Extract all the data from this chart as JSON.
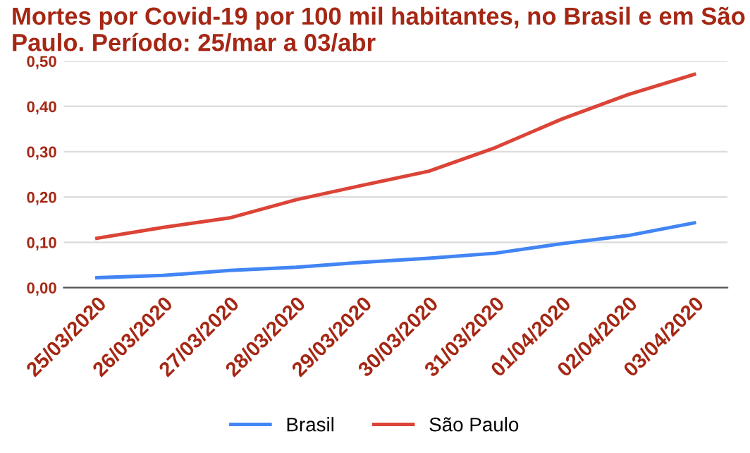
{
  "chart_data": {
    "type": "line",
    "title": "Mortes por Covid-19 por 100 mil habitantes, no Brasil e em São Paulo. Período: 25/mar a 03/abr",
    "categories": [
      "25/03/2020",
      "26/03/2020",
      "27/03/2020",
      "28/03/2020",
      "29/03/2020",
      "30/03/2020",
      "31/03/2020",
      "01/04/2020",
      "02/04/2020",
      "03/04/2020"
    ],
    "series": [
      {
        "name": "Brasil",
        "color": "#4285f4",
        "values": [
          0.022,
          0.027,
          0.038,
          0.045,
          0.056,
          0.065,
          0.076,
          0.097,
          0.115,
          0.143
        ]
      },
      {
        "name": "São Paulo",
        "color": "#db4437",
        "values": [
          0.109,
          0.133,
          0.154,
          0.194,
          0.226,
          0.257,
          0.309,
          0.372,
          0.426,
          0.471
        ]
      }
    ],
    "ylim": [
      0,
      0.5
    ],
    "yticks": [
      {
        "value": 0,
        "label": "0,00"
      },
      {
        "value": 0.1,
        "label": "0,10"
      },
      {
        "value": 0.2,
        "label": "0,20"
      },
      {
        "value": 0.3,
        "label": "0,30"
      },
      {
        "value": 0.4,
        "label": "0,40"
      },
      {
        "value": 0.5,
        "label": "0,50"
      }
    ],
    "grid": "y",
    "legend": "bottom",
    "marker": "none",
    "line_style": "solid"
  }
}
